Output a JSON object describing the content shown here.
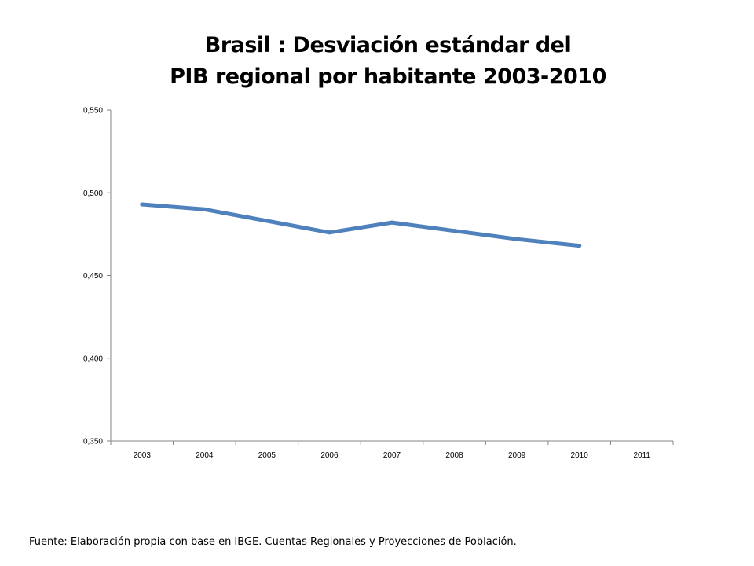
{
  "title": {
    "line1": "Brasil : Desviación estándar del",
    "line2": "PIB regional por habitante 2003-2010"
  },
  "source": "Fuente: Elaboración propia con base en IBGE. Cuentas Regionales y Proyecciones de Población.",
  "colors": {
    "series": "#4f81bd",
    "axis": "#868686"
  },
  "chart_data": {
    "type": "line",
    "title": "Brasil : Desviación estándar del PIB regional por habitante 2003-2010",
    "xlabel": "",
    "ylabel": "",
    "grid": false,
    "categories": [
      "2003",
      "2004",
      "2005",
      "2006",
      "2007",
      "2008",
      "2009",
      "2010",
      "2011"
    ],
    "y_ticks": [
      0.35,
      0.4,
      0.45,
      0.5,
      0.55
    ],
    "y_tick_labels": [
      "0,350",
      "0,400",
      "0,450",
      "0,500",
      "0,550"
    ],
    "ylim": [
      0.35,
      0.55
    ],
    "series": [
      {
        "name": "Desviación estándar",
        "values": [
          0.493,
          0.49,
          0.483,
          0.476,
          0.482,
          0.477,
          0.472,
          0.468,
          null
        ]
      }
    ]
  }
}
